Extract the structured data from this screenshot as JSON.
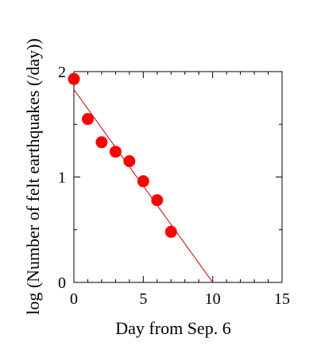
{
  "chart_data": {
    "type": "scatter",
    "xlabel": "Day from Sep. 6",
    "ylabel": "log (Number of felt earthquakes (/day))",
    "xlim": [
      0,
      15
    ],
    "ylim": [
      0,
      2
    ],
    "x_ticks": [
      0,
      5,
      10,
      15
    ],
    "y_ticks": [
      0,
      1,
      2
    ],
    "x_tick_labels": [
      "0",
      "5",
      "10",
      "15"
    ],
    "y_tick_labels": [
      "0",
      "1",
      "2"
    ],
    "grid": false,
    "series": [
      {
        "type": "scatter",
        "x": [
          0,
          1,
          2,
          3,
          4,
          5,
          6,
          7
        ],
        "y": [
          1.93,
          1.55,
          1.33,
          1.24,
          1.15,
          0.96,
          0.78,
          0.48
        ],
        "color": "#ff0000"
      }
    ],
    "fit_line": {
      "x": [
        0,
        10
      ],
      "y": [
        1.83,
        0
      ],
      "color": "#cc0000"
    }
  }
}
